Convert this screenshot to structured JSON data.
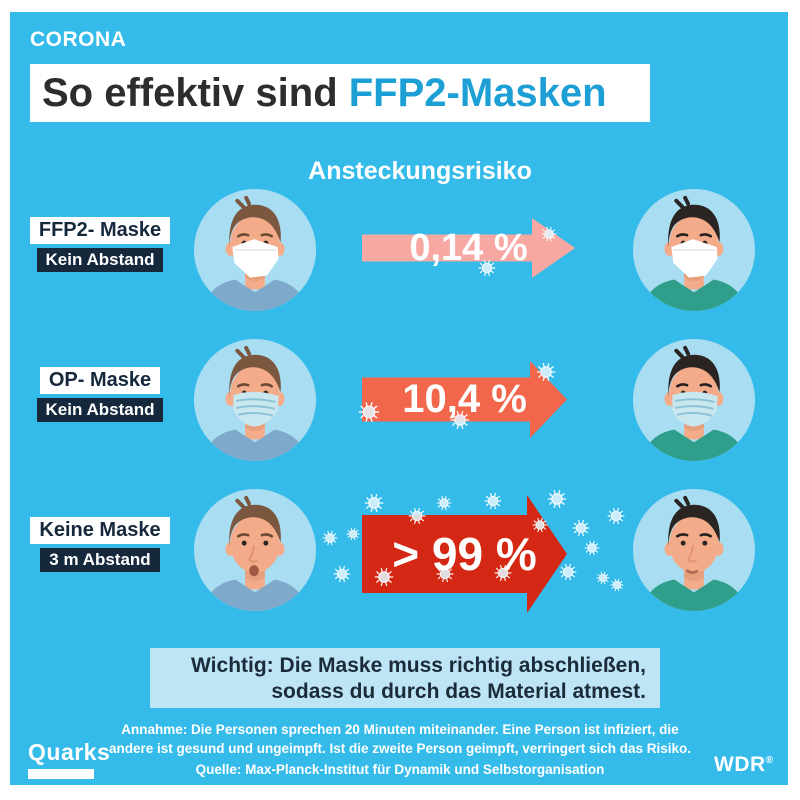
{
  "header": {
    "kicker": "CORONA",
    "title_prefix": "So effektiv sind ",
    "title_highlight": "FFP2-Masken"
  },
  "column_heading": "Ansteckungsrisiko",
  "rows": [
    {
      "mask_label": "FFP2- Maske",
      "distance_label": "Kein Abstand",
      "risk": "0,14 %",
      "arrow_color": "#F7A8A3",
      "people": {
        "left": {
          "hair": "brown",
          "shirt": "blue",
          "mask": "ffp2"
        },
        "right": {
          "hair": "black",
          "shirt": "teal",
          "mask": "ffp2"
        }
      }
    },
    {
      "mask_label": "OP- Maske",
      "distance_label": "Kein Abstand",
      "risk": "10,4 %",
      "arrow_color": "#F2664B",
      "people": {
        "left": {
          "hair": "brown",
          "shirt": "blue",
          "mask": "surgical"
        },
        "right": {
          "hair": "black",
          "shirt": "teal",
          "mask": "surgical"
        }
      }
    },
    {
      "mask_label": "Keine Maske",
      "distance_label": "3 m Abstand",
      "risk": "> 99 %",
      "arrow_color": "#D42814",
      "people": {
        "left": {
          "hair": "brown",
          "shirt": "blue",
          "mask": "none",
          "expression": "speaking"
        },
        "right": {
          "hair": "black",
          "shirt": "teal",
          "mask": "none",
          "expression": "worried"
        }
      }
    }
  ],
  "notice": {
    "label": "Wichtig:",
    "line1_rest": " Die Maske muss richtig abschließen,",
    "line2": "sodass du durch das Material atmest."
  },
  "footnote": {
    "line1": "Annahme: Die Personen sprechen 20 Minuten miteinander. Eine Person ist infiziert, die",
    "line2": "andere ist gesund und ungeimpft. Ist die zweite Person geimpft, verringert sich das Risiko.",
    "source": "Quelle: Max-Planck-Institut für Dynamik und Selbstorganisation"
  },
  "logos": {
    "quarks": "Quarks",
    "wdr": "WDR",
    "wdr_mark": "®"
  },
  "palette": {
    "background": "#35BBE9",
    "navy": "#16283C",
    "title_text": "#2D2D2D",
    "title_highlight": "#1C9FD4",
    "circle": "#A9DEF2",
    "notice_bg": "#BEE5F6",
    "notice_text": "#1C2B3A",
    "skin": "#F3AB89",
    "skin_shadow": "#DE9570",
    "hair": {
      "brown": "#7B5740",
      "black": "#2A2523"
    },
    "shirt": {
      "blue": "#7FA9CB",
      "teal": "#2F9F8B"
    }
  }
}
